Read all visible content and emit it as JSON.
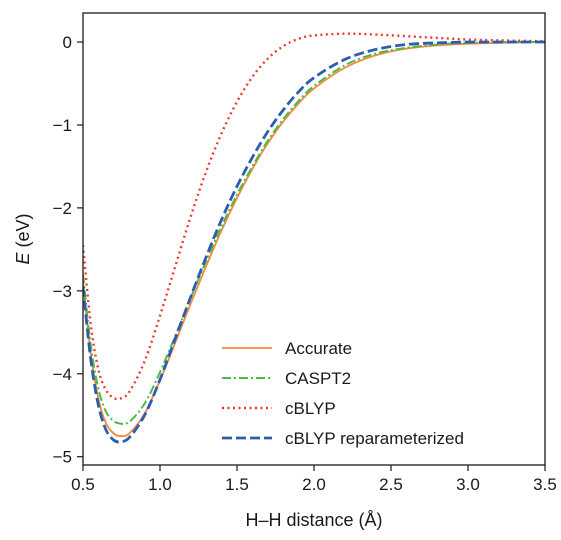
{
  "chart_data": {
    "type": "line",
    "title": "",
    "xlabel": "H–H distance (Å)",
    "ylabel_symbol": "E",
    "ylabel_unit": " (eV)",
    "xlim": [
      0.5,
      3.5
    ],
    "ylim": [
      -5.1,
      0.35
    ],
    "xticks": [
      0.5,
      1.0,
      1.5,
      2.0,
      2.5,
      3.0,
      3.5
    ],
    "xtick_labels": [
      "0.5",
      "1.0",
      "1.5",
      "2.0",
      "2.5",
      "3.0",
      "3.5"
    ],
    "yticks": [
      0,
      -1,
      -2,
      -3,
      -4,
      -5
    ],
    "ytick_labels": [
      "0",
      "−1",
      "−2",
      "−3",
      "−4",
      "−5"
    ],
    "grid": false,
    "legend_position": "bottom-right",
    "series": [
      {
        "name": "Accurate",
        "color": "#f08a3c",
        "style": "solid",
        "x": [
          0.5,
          0.55,
          0.6,
          0.65,
          0.7,
          0.74,
          0.8,
          0.9,
          1.0,
          1.1,
          1.2,
          1.3,
          1.4,
          1.5,
          1.6,
          1.7,
          1.8,
          1.9,
          2.0,
          2.2,
          2.4,
          2.6,
          2.8,
          3.0,
          3.2,
          3.5
        ],
        "y": [
          -2.9,
          -3.75,
          -4.3,
          -4.6,
          -4.72,
          -4.75,
          -4.72,
          -4.48,
          -4.08,
          -3.62,
          -3.15,
          -2.7,
          -2.27,
          -1.88,
          -1.53,
          -1.22,
          -0.96,
          -0.74,
          -0.56,
          -0.31,
          -0.16,
          -0.08,
          -0.04,
          -0.02,
          -0.01,
          0.0
        ]
      },
      {
        "name": "CASPT2",
        "color": "#4fb848",
        "style": "dashdot",
        "x": [
          0.5,
          0.55,
          0.6,
          0.65,
          0.7,
          0.74,
          0.8,
          0.9,
          1.0,
          1.1,
          1.2,
          1.3,
          1.4,
          1.5,
          1.6,
          1.7,
          1.8,
          1.9,
          2.0,
          2.2,
          2.4,
          2.6,
          2.8,
          3.0,
          3.2,
          3.5
        ],
        "y": [
          -2.8,
          -3.65,
          -4.18,
          -4.46,
          -4.57,
          -4.6,
          -4.58,
          -4.36,
          -3.98,
          -3.54,
          -3.08,
          -2.64,
          -2.22,
          -1.84,
          -1.5,
          -1.19,
          -0.93,
          -0.71,
          -0.53,
          -0.28,
          -0.14,
          -0.07,
          -0.03,
          -0.01,
          0.0,
          0.0
        ]
      },
      {
        "name": "cBLYP",
        "color": "#ee3b2f",
        "style": "dotted",
        "x": [
          0.5,
          0.55,
          0.6,
          0.65,
          0.7,
          0.74,
          0.8,
          0.9,
          1.0,
          1.1,
          1.2,
          1.3,
          1.4,
          1.5,
          1.6,
          1.7,
          1.8,
          1.9,
          2.0,
          2.2,
          2.4,
          2.6,
          2.8,
          3.0,
          3.2,
          3.5
        ],
        "y": [
          -2.45,
          -3.4,
          -3.95,
          -4.2,
          -4.29,
          -4.3,
          -4.22,
          -3.85,
          -3.3,
          -2.7,
          -2.1,
          -1.56,
          -1.1,
          -0.72,
          -0.42,
          -0.2,
          -0.05,
          0.04,
          0.08,
          0.1,
          0.09,
          0.07,
          0.05,
          0.03,
          0.02,
          0.01
        ]
      },
      {
        "name": "cBLYP reparameterized",
        "color": "#2e5db0",
        "style": "dashed",
        "x": [
          0.5,
          0.55,
          0.6,
          0.65,
          0.7,
          0.74,
          0.8,
          0.9,
          1.0,
          1.1,
          1.2,
          1.3,
          1.4,
          1.5,
          1.6,
          1.7,
          1.8,
          1.9,
          2.0,
          2.2,
          2.4,
          2.6,
          2.8,
          3.0,
          3.2,
          3.5
        ],
        "y": [
          -2.95,
          -3.82,
          -4.38,
          -4.68,
          -4.8,
          -4.82,
          -4.77,
          -4.5,
          -4.07,
          -3.57,
          -3.07,
          -2.59,
          -2.14,
          -1.74,
          -1.39,
          -1.08,
          -0.82,
          -0.6,
          -0.43,
          -0.21,
          -0.09,
          -0.03,
          -0.01,
          0.0,
          0.0,
          0.0
        ]
      }
    ]
  }
}
